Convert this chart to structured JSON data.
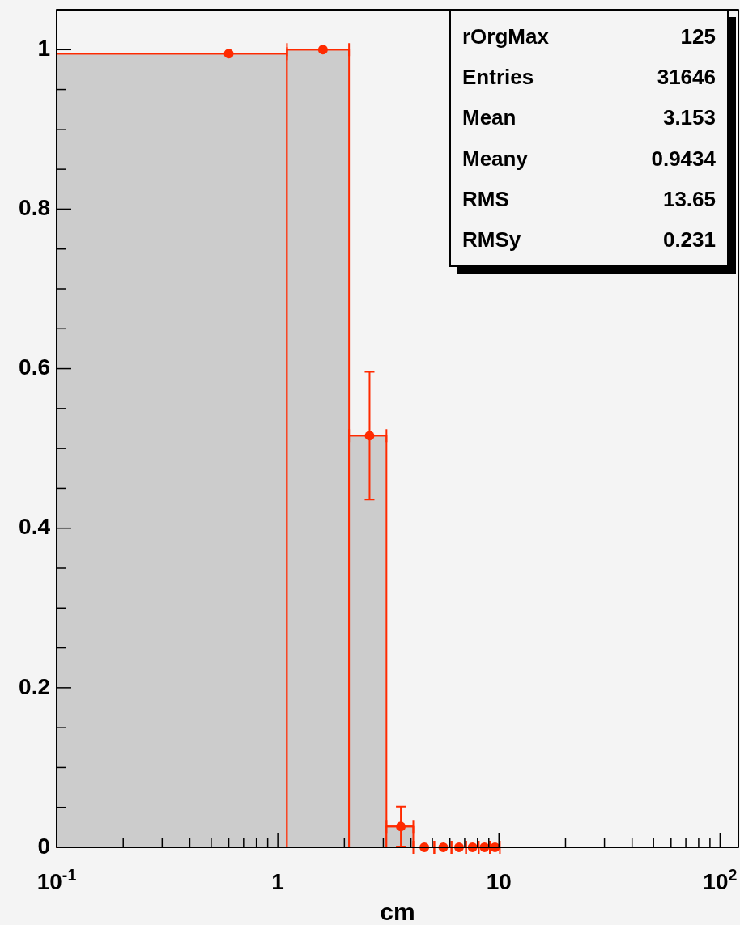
{
  "chart_data": {
    "type": "histogram",
    "xlabel": "cm",
    "log": "x",
    "grid": false,
    "legend": false,
    "bins": [
      0.1,
      1.1,
      2.1,
      3.1,
      4.1
    ],
    "series": [
      {
        "type": "histogram",
        "color": "#cccccc",
        "values": [
          0.995,
          1.0,
          0.516,
          0.026
        ]
      },
      {
        "type": "scatter",
        "color": "#ff2a00",
        "marker": "circle",
        "x": [
          0.6,
          1.6,
          2.6,
          3.6,
          4.6,
          5.6,
          6.6,
          7.6,
          8.6,
          9.6
        ],
        "values": [
          0.995,
          1.0,
          0.516,
          0.026,
          0,
          0,
          0,
          0,
          0,
          0
        ],
        "errors": [
          null,
          null,
          0.08,
          0.025,
          null,
          null,
          null,
          null,
          null,
          null
        ],
        "xerrors": [
          [
            0.1,
            1.1
          ],
          [
            1.1,
            2.1
          ],
          [
            2.1,
            3.1
          ],
          [
            3.1,
            4.1
          ],
          [
            4.1,
            5.1
          ],
          [
            5.1,
            6.1
          ],
          [
            6.1,
            7.1
          ],
          [
            7.1,
            8.1
          ],
          [
            8.1,
            9.1
          ],
          [
            9.1,
            10.1
          ]
        ]
      }
    ],
    "xlim": [
      0.1,
      121
    ],
    "ylim": [
      0,
      1.05
    ],
    "xticks": [
      {
        "value": 0.1,
        "label": "10$^{-1}$"
      },
      {
        "value": 0.2,
        "label": null
      },
      {
        "value": 0.3,
        "label": null
      },
      {
        "value": 0.4,
        "label": null
      },
      {
        "value": 0.5,
        "label": null
      },
      {
        "value": 0.6,
        "label": null
      },
      {
        "value": 0.7,
        "label": null
      },
      {
        "value": 0.8,
        "label": null
      },
      {
        "value": 0.9,
        "label": null
      },
      1,
      {
        "value": 2,
        "label": null
      },
      {
        "value": 3,
        "label": null
      },
      {
        "value": 4,
        "label": null
      },
      {
        "value": 5,
        "label": null
      },
      {
        "value": 6,
        "label": null
      },
      {
        "value": 7,
        "label": null
      },
      {
        "value": 8,
        "label": null
      },
      {
        "value": 9,
        "label": null
      },
      10,
      {
        "value": 20,
        "label": null
      },
      {
        "value": 30,
        "label": null
      },
      {
        "value": 40,
        "label": null
      },
      {
        "value": 50,
        "label": null
      },
      {
        "value": 60,
        "label": null
      },
      {
        "value": 70,
        "label": null
      },
      {
        "value": 80,
        "label": null
      },
      {
        "value": 90,
        "label": null
      },
      {
        "value": 100,
        "label": "10$^{2}$"
      }
    ],
    "yticks": [
      0,
      {
        "value": 0.05,
        "label": null
      },
      {
        "value": 0.1,
        "label": null
      },
      {
        "value": 0.15,
        "label": null
      },
      0.2,
      {
        "value": 0.25,
        "label": null
      },
      {
        "value": 0.3,
        "label": null
      },
      {
        "value": 0.35,
        "label": null
      },
      0.4,
      {
        "value": 0.45,
        "label": null
      },
      {
        "value": 0.5,
        "label": null
      },
      {
        "value": 0.55,
        "label": null
      },
      0.6,
      {
        "value": 0.65,
        "label": null
      },
      {
        "value": 0.7,
        "label": null
      },
      {
        "value": 0.75,
        "label": null
      },
      0.8,
      {
        "value": 0.85,
        "label": null
      },
      {
        "value": 0.9,
        "label": null
      },
      {
        "value": 0.95,
        "label": null
      },
      1
    ],
    "annotations": [
      "rOrgMax 125",
      "Entries 31646",
      "Mean 3.153",
      "Meany 0.9434",
      "RMS 13.65",
      "RMSy 0.231"
    ]
  }
}
